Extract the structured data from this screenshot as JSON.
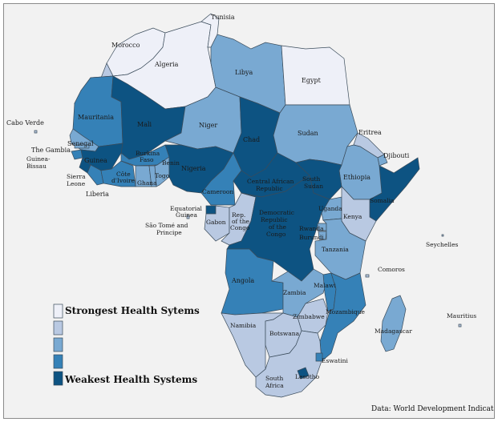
{
  "colors": {
    "c1": "#eef0f8",
    "c2": "#b9c9e2",
    "c3": "#79a9d2",
    "c4": "#3581b7",
    "c5": "#0d5382",
    "border": "#3a4b5a"
  },
  "legend": {
    "strongest": "Strongest Health Sytems",
    "weakest": "Weakest Health Systems",
    "levels": [
      "c1",
      "c2",
      "c3",
      "c4",
      "c5"
    ]
  },
  "source": "Data: World Development Indicators",
  "labels": {
    "tunisia": "Tunisia",
    "morocco": "Morocco",
    "algeria": "Algeria",
    "libya": "Libya",
    "egypt": "Egypt",
    "cabo_verde": "Cabo Verde",
    "mauritania": "Mauritania",
    "mali": "Mali",
    "niger": "Niger",
    "chad": "Chad",
    "sudan": "Sudan",
    "eritrea": "Eritrea",
    "djibouti": "Djibouti",
    "senegal": "Senegal",
    "the_gambia": "The Gambia",
    "guinea_bissau_1": "Guinea-",
    "guinea_bissau_2": "Bissau",
    "guinea": "Guinea",
    "sierra_leone_1": "Sierra",
    "sierra_leone_2": "Leone",
    "liberia": "Liberia",
    "burkina_1": "Burkina",
    "burkina_2": "Faso",
    "cote_1": "Côte",
    "cote_2": "d'Ivoire",
    "ghana": "Ghana",
    "togo": "Togo",
    "benin": "Benin",
    "nigeria": "Nigeria",
    "ethiopia": "Ethiopia",
    "south_sudan_1": "South",
    "south_sudan_2": "Sudan",
    "car_1": "Central African",
    "car_2": "Republic",
    "cameroon": "Cameroon",
    "somalia": "Somalia",
    "eq_guinea_1": "Equatorial",
    "eq_guinea_2": "Guinea",
    "gabon": "Gabon",
    "sao_tome_1": "São Tomé and",
    "sao_tome_2": "Principe",
    "rep_congo_1": "Rep.",
    "rep_congo_2": "of the",
    "rep_congo_3": "Congo",
    "drc_1": "Democratic",
    "drc_2": "Republic",
    "drc_3": "of the",
    "drc_4": "Congo",
    "uganda": "Uganda",
    "kenya": "Kenya",
    "rwanda": "Rwanda",
    "burundi": "Burundi",
    "tanzania": "Tanzania",
    "seychelles": "Seychelles",
    "comoros": "Comoros",
    "angola": "Angola",
    "malawi": "Malawi",
    "zambia": "Zambia",
    "mozambique": "Mozambique",
    "zimbabwe": "Zimbabwe",
    "namibia": "Namibia",
    "botswana": "Botswana",
    "madagascar": "Madagascar",
    "mauritius": "Mauritius",
    "eswatini": "Eswatini",
    "lesotho": "Lesotho",
    "south_africa_1": "South",
    "south_africa_2": "Africa"
  },
  "country_levels": {
    "morocco": "c1",
    "algeria": "c1",
    "tunisia": "c1",
    "libya": "c3",
    "egypt": "c1",
    "w_sahara": "c2",
    "mauritania": "c4",
    "mali": "c5",
    "niger": "c3",
    "chad": "c5",
    "sudan": "c3",
    "eritrea": "c2",
    "djibouti": "c3",
    "ethiopia": "c3",
    "somalia": "c5",
    "senegal": "c3",
    "gambia": "c3",
    "guinea_bissau": "c4",
    "guinea": "c5",
    "sierra_leone": "c5",
    "liberia": "c4",
    "cote": "c4",
    "burkina": "c4",
    "ghana": "c3",
    "togo": "c3",
    "benin": "c3",
    "nigeria": "c5",
    "cameroon": "c4",
    "car": "c5",
    "south_sudan": "c5",
    "eq_guinea": "c5",
    "gabon": "c2",
    "rep_congo": "c2",
    "drc": "c5",
    "uganda": "c3",
    "kenya": "c2",
    "rwanda": "c3",
    "burundi": "c3",
    "tanzania": "c3",
    "angola": "c4",
    "zambia": "c3",
    "malawi": "c4",
    "mozambique": "c4",
    "zimbabwe": "c2",
    "namibia": "c2",
    "botswana": "c2",
    "south_africa": "c2",
    "lesotho": "c5",
    "eswatini": "c4",
    "madagascar": "c3",
    "mauritius": "c2",
    "comoros": "c2",
    "seychelles": "c2",
    "cabo_verde": "c2",
    "sao_tome": "c2"
  }
}
